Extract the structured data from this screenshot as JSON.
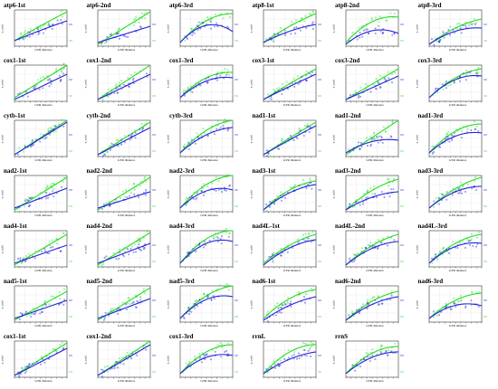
{
  "chart_data": {
    "type": "scatter",
    "grid": "on",
    "legend": "right",
    "colors": {
      "green": "#22dd22",
      "blue": "#2222dd"
    },
    "common": {
      "xlabel": "GTR distance",
      "ylabel": "x_raid"
    },
    "panels": [
      {
        "title": "atp6-1st",
        "green": [
          0.15,
          0.85,
          -0.05
        ],
        "blue": [
          0.15,
          0.6,
          -0.05
        ]
      },
      {
        "title": "atp6-2nd",
        "green": [
          0.05,
          0.9,
          0.0
        ],
        "blue": [
          0.1,
          0.45,
          0.0
        ]
      },
      {
        "title": "atp6-3rd",
        "green": [
          0.1,
          1.6,
          -0.8
        ],
        "blue": [
          0.1,
          1.6,
          -1.3
        ]
      },
      {
        "title": "atp8-1st",
        "green": [
          0.1,
          1.0,
          -0.2
        ],
        "blue": [
          0.1,
          0.75,
          -0.25
        ]
      },
      {
        "title": "atp8-2nd",
        "green": [
          0.1,
          1.6,
          -0.9
        ],
        "blue": [
          0.05,
          1.2,
          -0.9
        ]
      },
      {
        "title": "atp8-3rd",
        "green": [
          0.05,
          1.1,
          -0.4
        ],
        "blue": [
          0.05,
          1.0,
          -0.55
        ]
      },
      {
        "title": "cox1-1st",
        "green": [
          0.1,
          0.9,
          0.0
        ],
        "blue": [
          0.05,
          0.7,
          0.0
        ]
      },
      {
        "title": "cox1-2nd",
        "green": [
          0.05,
          0.95,
          0.0
        ],
        "blue": [
          0.05,
          0.7,
          0.0
        ]
      },
      {
        "title": "cox1-3rd",
        "green": [
          0.1,
          1.5,
          -0.8
        ],
        "blue": [
          0.1,
          1.3,
          -0.75
        ]
      },
      {
        "title": "cox3-1st",
        "green": [
          0.05,
          0.9,
          -0.05
        ],
        "blue": [
          0.05,
          0.75,
          -0.05
        ]
      },
      {
        "title": "cox3-2nd",
        "green": [
          0.05,
          0.85,
          0.0
        ],
        "blue": [
          0.05,
          0.65,
          0.0
        ]
      },
      {
        "title": "cox3-3rd",
        "green": [
          0.1,
          1.4,
          -0.6
        ],
        "blue": [
          0.1,
          1.4,
          -0.8
        ]
      },
      {
        "title": "cytb-1st",
        "green": [
          0.05,
          0.95,
          0.0
        ],
        "blue": [
          0.05,
          0.9,
          0.0
        ]
      },
      {
        "title": "cytb-2nd",
        "green": [
          0.05,
          0.9,
          0.0
        ],
        "blue": [
          0.05,
          0.75,
          0.0
        ]
      },
      {
        "title": "cytb-3rd",
        "green": [
          0.1,
          1.6,
          -0.7
        ],
        "blue": [
          0.1,
          1.3,
          -0.6
        ]
      },
      {
        "title": "nad1-1st",
        "green": [
          0.05,
          0.95,
          -0.05
        ],
        "blue": [
          0.05,
          0.85,
          -0.05
        ]
      },
      {
        "title": "nad1-2nd",
        "green": [
          0.05,
          0.95,
          0.0
        ],
        "blue": [
          0.1,
          0.9,
          -0.55
        ]
      },
      {
        "title": "nad1-3rd",
        "green": [
          0.1,
          1.6,
          -0.8
        ],
        "blue": [
          0.1,
          1.3,
          -0.75
        ]
      },
      {
        "title": "nad2-1st",
        "green": [
          0.05,
          0.9,
          0.0
        ],
        "blue": [
          0.1,
          0.55,
          0.0
        ]
      },
      {
        "title": "nad2-2nd",
        "green": [
          0.05,
          0.9,
          0.0
        ],
        "blue": [
          0.1,
          0.45,
          0.0
        ]
      },
      {
        "title": "nad2-3rd",
        "green": [
          0.1,
          1.7,
          -0.8
        ],
        "blue": [
          0.1,
          1.4,
          -0.9
        ]
      },
      {
        "title": "nad3-1st",
        "green": [
          0.05,
          1.4,
          -0.6
        ],
        "blue": [
          0.05,
          1.2,
          -0.5
        ]
      },
      {
        "title": "nad3-2nd",
        "green": [
          0.05,
          1.3,
          -0.45
        ],
        "blue": [
          0.05,
          0.9,
          -0.4
        ]
      },
      {
        "title": "nad3-3rd",
        "green": [
          0.1,
          1.3,
          -0.45
        ],
        "blue": [
          0.1,
          1.2,
          -0.6
        ]
      },
      {
        "title": "nad4-1st",
        "green": [
          0.05,
          0.85,
          0.0
        ],
        "blue": [
          0.1,
          0.5,
          0.0
        ]
      },
      {
        "title": "nad4-2nd",
        "green": [
          0.05,
          0.9,
          0.0
        ],
        "blue": [
          0.1,
          0.55,
          0.0
        ]
      },
      {
        "title": "nad4-3rd",
        "green": [
          0.1,
          1.8,
          -0.9
        ],
        "blue": [
          0.1,
          1.6,
          -1.0
        ]
      },
      {
        "title": "nad4L-1st",
        "green": [
          0.1,
          1.2,
          -0.4
        ],
        "blue": [
          0.05,
          1.2,
          -0.5
        ]
      },
      {
        "title": "nad4L-2nd",
        "green": [
          0.05,
          1.3,
          -0.45
        ],
        "blue": [
          0.05,
          1.2,
          -0.55
        ]
      },
      {
        "title": "nad4L-3rd",
        "green": [
          0.1,
          1.4,
          -0.6
        ],
        "blue": [
          0.1,
          1.3,
          -0.75
        ]
      },
      {
        "title": "nad5-1st",
        "green": [
          0.05,
          0.8,
          0.0
        ],
        "blue": [
          0.1,
          0.5,
          0.0
        ]
      },
      {
        "title": "nad5-2nd",
        "green": [
          0.05,
          0.9,
          0.0
        ],
        "blue": [
          0.1,
          0.55,
          0.0
        ]
      },
      {
        "title": "nad5-3rd",
        "green": [
          0.1,
          1.6,
          -0.7
        ],
        "blue": [
          0.1,
          1.5,
          -0.9
        ]
      },
      {
        "title": "nad6-1st",
        "green": [
          0.1,
          1.4,
          -0.6
        ],
        "blue": [
          0.05,
          1.0,
          -0.35
        ]
      },
      {
        "title": "nad6-2nd",
        "green": [
          0.05,
          1.3,
          -0.5
        ],
        "blue": [
          0.05,
          1.1,
          -0.45
        ]
      },
      {
        "title": "nad6-3rd",
        "green": [
          0.1,
          1.3,
          -0.6
        ],
        "blue": [
          0.1,
          1.1,
          -0.75
        ]
      },
      {
        "title": "cox1-1st",
        "green": [
          0.05,
          0.9,
          0.0
        ],
        "blue": [
          0.05,
          0.75,
          0.0
        ]
      },
      {
        "title": "cox1-2nd",
        "green": [
          0.05,
          0.95,
          0.0
        ],
        "blue": [
          0.05,
          0.85,
          0.0
        ]
      },
      {
        "title": "cox1-3rd",
        "green": [
          0.1,
          1.6,
          -0.8
        ],
        "blue": [
          0.1,
          1.3,
          -0.8
        ]
      },
      {
        "title": "rrnL",
        "green": [
          0.1,
          1.6,
          -0.8
        ],
        "blue": [
          0.1,
          1.0,
          -0.4
        ]
      },
      {
        "title": "rrnS",
        "green": [
          0.1,
          1.5,
          -0.75
        ],
        "blue": [
          0.1,
          1.2,
          -0.6
        ]
      }
    ]
  }
}
